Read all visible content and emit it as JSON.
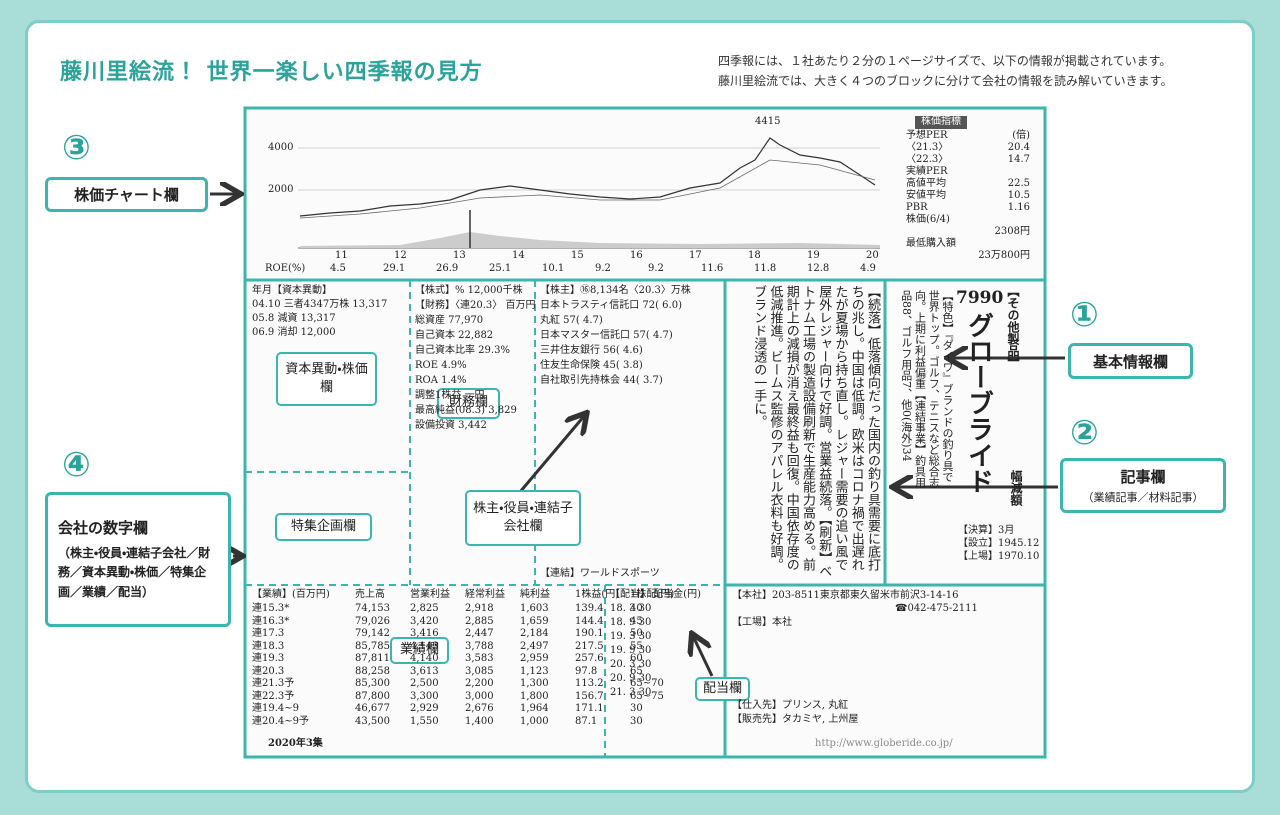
{
  "header": {
    "title": "藤川里絵流！ 世界一楽しい四季報の見方",
    "description": [
      "四季報には、１社あたり２分の１ページサイズで、以下の情報が掲載されています。",
      "藤川里絵流では、大きく４つのブロックに分けて会社の情報を読み解いていきます。"
    ]
  },
  "callouts": [
    {
      "number": "③",
      "label": "株価チャート欄"
    },
    {
      "number": "①",
      "label": "基本情報欄"
    },
    {
      "number": "②",
      "label": "記事欄",
      "sub": "（業績記事／材料記事）"
    },
    {
      "number": "④",
      "label": "会社の数字欄",
      "sub": "（株主・役員・連結子会社／財務／資本異動・株価／特集企画／業績／配当）"
    }
  ],
  "inner_labels": [
    "資本異動・株価欄",
    "財務欄",
    "株主・役員・連結子会社欄",
    "特集企画欄",
    "業績欄",
    "配当欄"
  ],
  "report": {
    "chart": {
      "peak": "4415",
      "yticks": [
        "4000",
        "2000"
      ],
      "xlabels": [
        "11",
        "12",
        "13",
        "14",
        "15",
        "16",
        "17",
        "18",
        "19",
        "20"
      ],
      "roe_label": "ROE(%)",
      "roe": [
        "4.5",
        "29.1",
        "26.9",
        "25.1",
        "10.1",
        "9.2",
        "9.2",
        "11.6",
        "11.8",
        "12.8",
        "4.9"
      ]
    },
    "index": {
      "heading": "株価指標",
      "rows": [
        [
          "予想PER",
          "(倍)"
        ],
        [
          "〈21.3〉",
          "20.4"
        ],
        [
          "〈22.3〉",
          "14.7"
        ],
        [
          "実績PER",
          ""
        ],
        [
          "高値平均",
          "22.5"
        ],
        [
          "安値平均",
          "10.5"
        ],
        [
          "PBR",
          "1.16"
        ],
        [
          "株価(6/4)",
          ""
        ],
        [
          "",
          "2308円"
        ],
        [
          "最低購入額",
          ""
        ],
        [
          "",
          "23万800円"
        ]
      ]
    },
    "code": "7990",
    "name": "グローブライド",
    "sector": "【その他製品】",
    "rating": "幅減額",
    "basic": "【特色】『ダイワ』ブランドの釣り具で世界トップ。ゴルフ、テニスなど総合志向。上期に利益偏重【連結事業】釣具用品88、ゴルフ用品7、他0(海外)34",
    "settle": [
      "【決算】3月",
      "【設立】1945.12",
      "【上場】1970.10"
    ],
    "article": "【続落】低落傾向だった国内の釣り具需要に底打ちの兆し。中国は低調。欧米はコロナ禍で出遅れたが夏場から持ち直し。レジャー需要の追い風で屋外レジャー向けで好調。営業益続落。【刷新】ベトナム工場の製造設備刷新で生産能力高める。前期計上の減損が消え最終益も回復。中国依存度の低減推進。ビームス監修のアパレル衣料も好調。ブランド浸透の一手に。",
    "capital": [
      "年月【資本異動】",
      "04.10 三者4347万株 13,317",
      "05.8 減資 13,317",
      "06.9 消却 12,000"
    ],
    "finance": [
      "【株式】% 12,000千株",
      "【財務】〈連20.3〉 百万円",
      "総資産 77,970",
      "自己資本 22,882",
      "自己資本比率 29.3%",
      "ROE 4.9%",
      "ROA 1.4%",
      "調整1株益 一円",
      "最高純益(08.3) 3,829",
      "設備投資 3,442"
    ],
    "shareholders": [
      "【株主】⑯8,134名〈20.3〉万株",
      "日本トラスティ信託口 72( 6.0)",
      "丸紅 57( 4.7)",
      "日本マスター信託口 57( 4.7)",
      "三井住友銀行 56( 4.6)",
      "住友生命保険 45( 3.8)",
      "自社取引先持株会 44( 3.7)"
    ],
    "subsidiary": "【連結】ワールドスポーツ",
    "results_head": [
      "【業績】(百万円)",
      "売上高",
      "営業利益",
      "経常利益",
      "純利益",
      "1株益(円)",
      "1株配(円)"
    ],
    "results": [
      [
        "連15.3*",
        "74,153",
        "2,825",
        "2,918",
        "1,603",
        "139.4",
        "40"
      ],
      [
        "連16.3*",
        "79,026",
        "3,420",
        "2,885",
        "1,659",
        "144.4",
        "45"
      ],
      [
        "連17.3",
        "79,142",
        "3,416",
        "2,447",
        "2,184",
        "190.1",
        "50"
      ],
      [
        "連18.3",
        "85,785",
        "4,143",
        "3,788",
        "2,497",
        "217.5",
        "55"
      ],
      [
        "連19.3",
        "87,811",
        "4,140",
        "3,583",
        "2,959",
        "257.6",
        "60"
      ],
      [
        "連20.3",
        "88,258",
        "3,613",
        "3,085",
        "1,123",
        "97.8",
        "65"
      ],
      [
        "連21.3予",
        "85,300",
        "2,500",
        "2,200",
        "1,300",
        "113.2",
        "65~70"
      ],
      [
        "連22.3予",
        "87,800",
        "3,300",
        "3,000",
        "1,800",
        "156.7",
        "65~75"
      ],
      [
        "連19.4~9",
        "46,677",
        "2,929",
        "2,676",
        "1,964",
        "171.1",
        "30"
      ],
      [
        "連20.4~9予",
        "43,500",
        "1,550",
        "1,400",
        "1,000",
        "87.1",
        "30"
      ]
    ],
    "dividend": [
      "【配当】 配当金(円)",
      "18. 3 30",
      "18. 9 30",
      "19. 3 30",
      "19. 9 30",
      "20. 3 30",
      "20. 9 30",
      "21. 3 30"
    ],
    "hq": [
      "【本社】203-8511東京都東久留米市前沢3-14-16",
      "☎042-475-2111",
      "【工場】本社",
      "【仕入先】プリンス, 丸紅",
      "【販売先】タカミヤ, 上州屋"
    ],
    "edition": "2020年3集",
    "url": "http://www.globeride.co.jp/"
  }
}
